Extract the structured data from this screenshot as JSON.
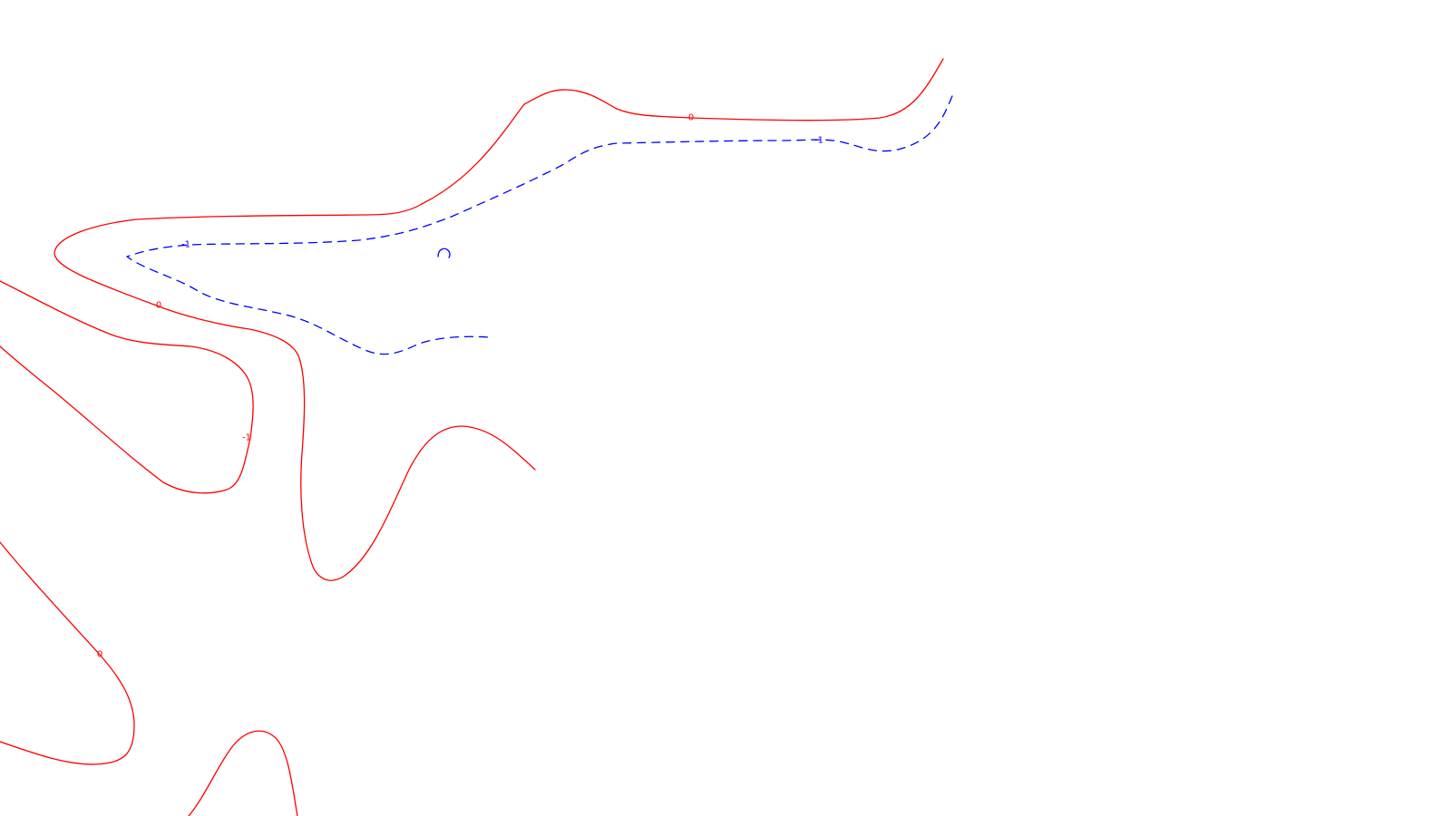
{
  "map": {
    "background_color": "#ffffff",
    "contours": [
      {
        "id": "red-0-upper",
        "color": "#ff0000",
        "style": "solid",
        "labels": [
          "0",
          "0"
        ]
      },
      {
        "id": "red-minus1-left",
        "color": "#ff0000",
        "style": "solid",
        "labels": [
          "-1"
        ]
      },
      {
        "id": "red-wave-middle",
        "color": "#ff0000",
        "style": "solid",
        "labels": []
      },
      {
        "id": "red-0-lower-left",
        "color": "#ff0000",
        "style": "solid",
        "labels": [
          "0"
        ]
      },
      {
        "id": "red-arc-bottom",
        "color": "#ff0000",
        "style": "solid",
        "labels": []
      },
      {
        "id": "blue-minus1",
        "color": "#0000ff",
        "style": "dashed",
        "labels": [
          "-1",
          "-1"
        ]
      },
      {
        "id": "blue-small-arc",
        "color": "#0000ff",
        "style": "solid",
        "labels": []
      }
    ]
  }
}
